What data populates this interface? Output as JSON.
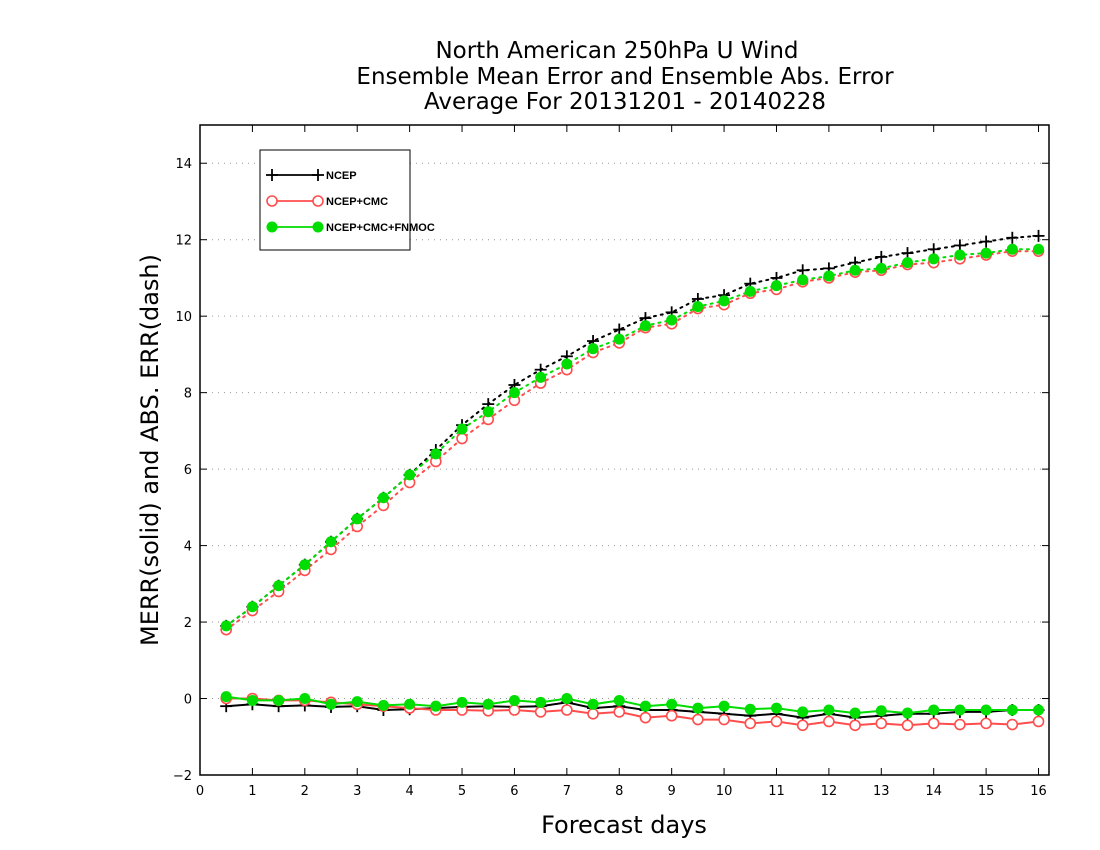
{
  "chart_data": {
    "type": "line",
    "title": [
      "North American 250hPa U Wind",
      "Ensemble Mean Error and Ensemble Abs. Error",
      "Average For 20131201 - 20140228"
    ],
    "xlabel": "Forecast days",
    "ylabel": "MERR(solid) and ABS. ERR(dash)",
    "xlim": [
      0,
      16.2
    ],
    "ylim": [
      -2,
      15
    ],
    "xticks": [
      0,
      1,
      2,
      3,
      4,
      5,
      6,
      7,
      8,
      9,
      10,
      11,
      12,
      13,
      14,
      15,
      16
    ],
    "yticks": [
      -2,
      0,
      2,
      4,
      6,
      8,
      10,
      12,
      14
    ],
    "grid": "horizontal dotted",
    "legend_position": "top-left",
    "x": [
      0.5,
      1,
      1.5,
      2,
      2.5,
      3,
      3.5,
      4,
      4.5,
      5,
      5.5,
      6,
      6.5,
      7,
      7.5,
      8,
      8.5,
      9,
      9.5,
      10,
      10.5,
      11,
      11.5,
      12,
      12.5,
      13,
      13.5,
      14,
      14.5,
      15,
      15.5,
      16
    ],
    "series": [
      {
        "name": "NCEP",
        "color": "#000000",
        "marker": "plus",
        "abs_err": [
          1.9,
          2.4,
          2.95,
          3.5,
          4.1,
          4.7,
          5.25,
          5.85,
          6.5,
          7.15,
          7.7,
          8.2,
          8.6,
          8.95,
          9.35,
          9.65,
          9.95,
          10.1,
          10.45,
          10.55,
          10.85,
          11.0,
          11.2,
          11.25,
          11.4,
          11.55,
          11.65,
          11.75,
          11.85,
          11.95,
          12.05,
          12.1
        ],
        "mean_err": [
          -0.2,
          -0.15,
          -0.2,
          -0.18,
          -0.22,
          -0.2,
          -0.3,
          -0.28,
          -0.25,
          -0.22,
          -0.2,
          -0.22,
          -0.2,
          -0.1,
          -0.25,
          -0.2,
          -0.3,
          -0.3,
          -0.35,
          -0.4,
          -0.45,
          -0.4,
          -0.5,
          -0.4,
          -0.5,
          -0.45,
          -0.4,
          -0.4,
          -0.35,
          -0.35,
          -0.3,
          -0.3
        ]
      },
      {
        "name": "NCEP+CMC",
        "color": "#ff4d4d",
        "marker": "open-circle",
        "abs_err": [
          1.8,
          2.3,
          2.8,
          3.35,
          3.9,
          4.5,
          5.05,
          5.65,
          6.2,
          6.8,
          7.3,
          7.8,
          8.25,
          8.6,
          9.05,
          9.3,
          9.7,
          9.8,
          10.2,
          10.3,
          10.6,
          10.7,
          10.9,
          11.0,
          11.15,
          11.2,
          11.35,
          11.4,
          11.5,
          11.6,
          11.7,
          11.7
        ],
        "mean_err": [
          0.0,
          0.0,
          -0.05,
          -0.05,
          -0.1,
          -0.15,
          -0.2,
          -0.25,
          -0.3,
          -0.3,
          -0.32,
          -0.3,
          -0.35,
          -0.3,
          -0.4,
          -0.35,
          -0.5,
          -0.45,
          -0.55,
          -0.55,
          -0.65,
          -0.6,
          -0.7,
          -0.6,
          -0.7,
          -0.65,
          -0.7,
          -0.65,
          -0.68,
          -0.65,
          -0.68,
          -0.6
        ]
      },
      {
        "name": "NCEP+CMC+FNMOC",
        "color": "#00dd00",
        "marker": "filled-circle",
        "abs_err": [
          1.9,
          2.4,
          2.95,
          3.5,
          4.1,
          4.7,
          5.25,
          5.85,
          6.4,
          7.05,
          7.5,
          8.0,
          8.4,
          8.75,
          9.15,
          9.4,
          9.75,
          9.9,
          10.25,
          10.4,
          10.65,
          10.8,
          10.95,
          11.05,
          11.2,
          11.25,
          11.4,
          11.5,
          11.6,
          11.65,
          11.75,
          11.75
        ],
        "mean_err": [
          0.05,
          -0.05,
          -0.05,
          0.0,
          -0.15,
          -0.08,
          -0.18,
          -0.15,
          -0.2,
          -0.1,
          -0.15,
          -0.05,
          -0.1,
          0.0,
          -0.15,
          -0.05,
          -0.2,
          -0.15,
          -0.25,
          -0.2,
          -0.28,
          -0.25,
          -0.35,
          -0.3,
          -0.38,
          -0.32,
          -0.38,
          -0.3,
          -0.3,
          -0.3,
          -0.3,
          -0.3
        ]
      }
    ]
  }
}
